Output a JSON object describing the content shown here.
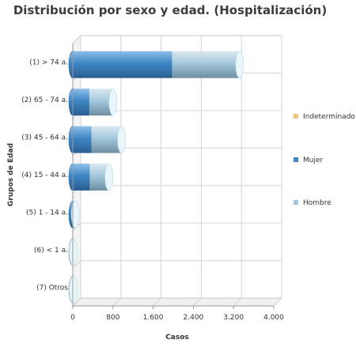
{
  "chart_data": {
    "type": "bar",
    "orientation": "horizontal",
    "stacked": true,
    "style": "3d-cylinder",
    "title": "Distribución por sexo y edad. (Hospitalización)",
    "xlabel": "Casos",
    "ylabel": "Grupos de Edad",
    "categories": [
      "(1) > 74 a.",
      "(2) 65 - 74 a.",
      "(3) 45 - 64 a.",
      "(4) 15 - 44 a.",
      "(5) 1 - 14 a.",
      "(6) < 1 a.",
      "(7) Otros"
    ],
    "series": [
      {
        "name": "Indeterminado",
        "color": "#f4c27a",
        "values": [
          0,
          0,
          0,
          0,
          0,
          0,
          0
        ]
      },
      {
        "name": "Mujer",
        "color": "#3f86c5",
        "values": [
          1980,
          330,
          370,
          340,
          40,
          0,
          0
        ]
      },
      {
        "name": "Hombre",
        "color": "#a3c7dc",
        "values": [
          1340,
          470,
          600,
          380,
          10,
          10,
          10
        ]
      }
    ],
    "xlim": [
      0,
      4000
    ],
    "xticks": [
      0,
      800,
      1600,
      2400,
      3200,
      4000
    ],
    "xtick_labels": [
      "0",
      "800",
      "1.600",
      "2.400",
      "3.200",
      "4.000"
    ],
    "grid": true,
    "legend_position": "right"
  }
}
